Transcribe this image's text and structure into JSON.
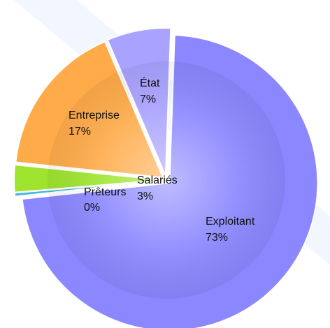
{
  "chart_data": {
    "type": "pie",
    "exploded": true,
    "title": "",
    "slices": [
      {
        "label": "Exploitant",
        "percent_label": "73%",
        "value": 73,
        "color": "#8b87ff"
      },
      {
        "label": "Prêteurs",
        "percent_label": "0%",
        "value": 0.4,
        "color": "#3fb8dc"
      },
      {
        "label": "Salariés",
        "percent_label": "3%",
        "value": 3,
        "color": "#9ee42f"
      },
      {
        "label": "Entreprise",
        "percent_label": "17%",
        "value": 17,
        "color": "#ffab4a"
      },
      {
        "label": "État",
        "percent_label": "7%",
        "value": 7,
        "color": "#a9a2ff"
      }
    ]
  }
}
